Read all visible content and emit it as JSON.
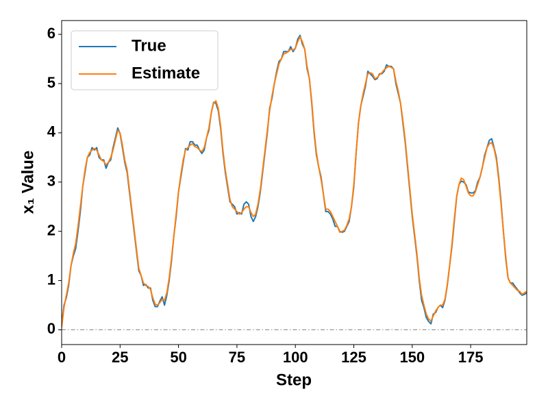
{
  "chart_data": {
    "type": "line",
    "xlabel": "Step",
    "ylabel": "x₁ Value",
    "x": [
      0,
      1,
      2,
      3,
      4,
      5,
      6,
      7,
      8,
      9,
      10,
      11,
      12,
      13,
      14,
      15,
      16,
      17,
      18,
      19,
      20,
      21,
      22,
      23,
      24,
      25,
      26,
      27,
      28,
      29,
      30,
      31,
      32,
      33,
      34,
      35,
      36,
      37,
      38,
      39,
      40,
      41,
      42,
      43,
      44,
      45,
      46,
      47,
      48,
      49,
      50,
      51,
      52,
      53,
      54,
      55,
      56,
      57,
      58,
      59,
      60,
      61,
      62,
      63,
      64,
      65,
      66,
      67,
      68,
      69,
      70,
      71,
      72,
      73,
      74,
      75,
      76,
      77,
      78,
      79,
      80,
      81,
      82,
      83,
      84,
      85,
      86,
      87,
      88,
      89,
      90,
      91,
      92,
      93,
      94,
      95,
      96,
      97,
      98,
      99,
      100,
      101,
      102,
      103,
      104,
      105,
      106,
      107,
      108,
      109,
      110,
      111,
      112,
      113,
      114,
      115,
      116,
      117,
      118,
      119,
      120,
      121,
      122,
      123,
      124,
      125,
      126,
      127,
      128,
      129,
      130,
      131,
      132,
      133,
      134,
      135,
      136,
      137,
      138,
      139,
      140,
      141,
      142,
      143,
      144,
      145,
      146,
      147,
      148,
      149,
      150,
      151,
      152,
      153,
      154,
      155,
      156,
      157,
      158,
      159,
      160,
      161,
      162,
      163,
      164,
      165,
      166,
      167,
      168,
      169,
      170,
      171,
      172,
      173,
      174,
      175,
      176,
      177,
      178,
      179,
      180,
      181,
      182,
      183,
      184,
      185,
      186,
      187,
      188,
      189,
      190,
      191,
      192,
      193,
      194,
      195,
      196,
      197,
      198,
      199
    ],
    "series": [
      {
        "name": "True",
        "color": "#1f77b4",
        "values": [
          0.1,
          0.5,
          0.65,
          0.9,
          1.3,
          1.5,
          1.65,
          2.0,
          2.4,
          2.9,
          3.2,
          3.5,
          3.55,
          3.7,
          3.65,
          3.7,
          3.5,
          3.45,
          3.45,
          3.28,
          3.4,
          3.45,
          3.7,
          3.9,
          4.1,
          3.98,
          3.7,
          3.4,
          3.2,
          2.8,
          2.4,
          2.0,
          1.6,
          1.2,
          1.1,
          0.9,
          0.92,
          0.85,
          0.85,
          0.6,
          0.47,
          0.47,
          0.58,
          0.67,
          0.5,
          0.7,
          1.0,
          1.4,
          1.9,
          2.3,
          2.8,
          3.1,
          3.4,
          3.68,
          3.65,
          3.82,
          3.82,
          3.75,
          3.75,
          3.65,
          3.58,
          3.65,
          3.9,
          4.05,
          4.4,
          4.62,
          4.6,
          4.45,
          4.1,
          3.6,
          3.2,
          2.9,
          2.6,
          2.55,
          2.5,
          2.35,
          2.38,
          2.35,
          2.55,
          2.6,
          2.55,
          2.3,
          2.2,
          2.3,
          2.5,
          2.8,
          3.2,
          3.6,
          4.0,
          4.5,
          4.7,
          5.0,
          5.25,
          5.45,
          5.5,
          5.65,
          5.65,
          5.65,
          5.75,
          5.65,
          5.72,
          5.9,
          5.98,
          5.8,
          5.7,
          5.3,
          5.1,
          4.6,
          4.0,
          3.55,
          3.3,
          3.1,
          2.75,
          2.4,
          2.4,
          2.35,
          2.25,
          2.1,
          2.1,
          2.0,
          1.98,
          2.0,
          2.1,
          2.2,
          2.5,
          2.9,
          3.6,
          4.2,
          4.55,
          4.75,
          4.95,
          5.25,
          5.2,
          5.15,
          5.08,
          5.1,
          5.2,
          5.2,
          5.25,
          5.38,
          5.35,
          5.35,
          5.3,
          5.0,
          4.8,
          4.6,
          4.2,
          3.8,
          3.3,
          2.8,
          2.3,
          1.9,
          1.5,
          1.0,
          0.6,
          0.45,
          0.25,
          0.17,
          0.12,
          0.32,
          0.35,
          0.45,
          0.5,
          0.45,
          0.6,
          0.9,
          1.3,
          1.7,
          2.2,
          2.7,
          2.95,
          3.02,
          3.0,
          2.95,
          2.8,
          2.78,
          2.78,
          2.82,
          3.0,
          3.1,
          3.3,
          3.55,
          3.7,
          3.85,
          3.88,
          3.7,
          3.5,
          3.1,
          2.6,
          2.0,
          1.45,
          1.05,
          0.95,
          0.95,
          0.88,
          0.82,
          0.75,
          0.7,
          0.72,
          0.75
        ]
      },
      {
        "name": "Estimate",
        "color": "#ff7f0e",
        "values": [
          0.05,
          0.45,
          0.7,
          0.95,
          1.3,
          1.55,
          1.75,
          2.1,
          2.5,
          2.9,
          3.25,
          3.5,
          3.6,
          3.65,
          3.68,
          3.65,
          3.55,
          3.45,
          3.42,
          3.35,
          3.4,
          3.5,
          3.65,
          3.85,
          4.05,
          4.0,
          3.75,
          3.45,
          3.25,
          2.85,
          2.45,
          2.05,
          1.65,
          1.25,
          1.1,
          0.95,
          0.9,
          0.88,
          0.82,
          0.65,
          0.52,
          0.5,
          0.55,
          0.62,
          0.6,
          0.75,
          1.05,
          1.45,
          1.9,
          2.35,
          2.8,
          3.15,
          3.45,
          3.65,
          3.7,
          3.75,
          3.78,
          3.72,
          3.7,
          3.65,
          3.62,
          3.7,
          3.9,
          4.1,
          4.4,
          4.6,
          4.65,
          4.5,
          4.15,
          3.65,
          3.25,
          2.95,
          2.65,
          2.5,
          2.45,
          2.4,
          2.35,
          2.38,
          2.45,
          2.5,
          2.5,
          2.38,
          2.3,
          2.35,
          2.55,
          2.85,
          3.25,
          3.65,
          4.05,
          4.45,
          4.75,
          5.0,
          5.2,
          5.4,
          5.5,
          5.6,
          5.62,
          5.65,
          5.7,
          5.68,
          5.72,
          5.85,
          5.95,
          5.85,
          5.7,
          5.35,
          5.1,
          4.65,
          4.05,
          3.6,
          3.3,
          3.05,
          2.75,
          2.45,
          2.45,
          2.4,
          2.3,
          2.2,
          2.1,
          1.98,
          2.0,
          2.02,
          2.12,
          2.25,
          2.5,
          2.95,
          3.6,
          4.2,
          4.55,
          4.8,
          5.0,
          5.2,
          5.22,
          5.2,
          5.1,
          5.12,
          5.18,
          5.22,
          5.28,
          5.32,
          5.35,
          5.33,
          5.3,
          5.05,
          4.85,
          4.6,
          4.25,
          3.85,
          3.35,
          2.85,
          2.35,
          1.95,
          1.55,
          1.05,
          0.7,
          0.5,
          0.32,
          0.22,
          0.18,
          0.28,
          0.38,
          0.45,
          0.5,
          0.5,
          0.62,
          0.92,
          1.3,
          1.75,
          2.25,
          2.7,
          2.95,
          3.08,
          3.05,
          2.92,
          2.78,
          2.72,
          2.72,
          2.8,
          2.95,
          3.1,
          3.3,
          3.5,
          3.7,
          3.78,
          3.8,
          3.68,
          3.45,
          3.05,
          2.55,
          2.0,
          1.5,
          1.05,
          0.95,
          0.9,
          0.85,
          0.8,
          0.78,
          0.72,
          0.75,
          0.78
        ]
      }
    ],
    "hlines": [
      0
    ],
    "hline_color": "#808080",
    "xlim": [
      0,
      199
    ],
    "xticks": [
      0,
      25,
      50,
      75,
      100,
      125,
      150,
      175
    ],
    "ylim": [
      -0.3,
      6.28
    ],
    "yticks": [
      0,
      1,
      2,
      3,
      4,
      5,
      6
    ],
    "legend": "upper left",
    "grid": false
  }
}
